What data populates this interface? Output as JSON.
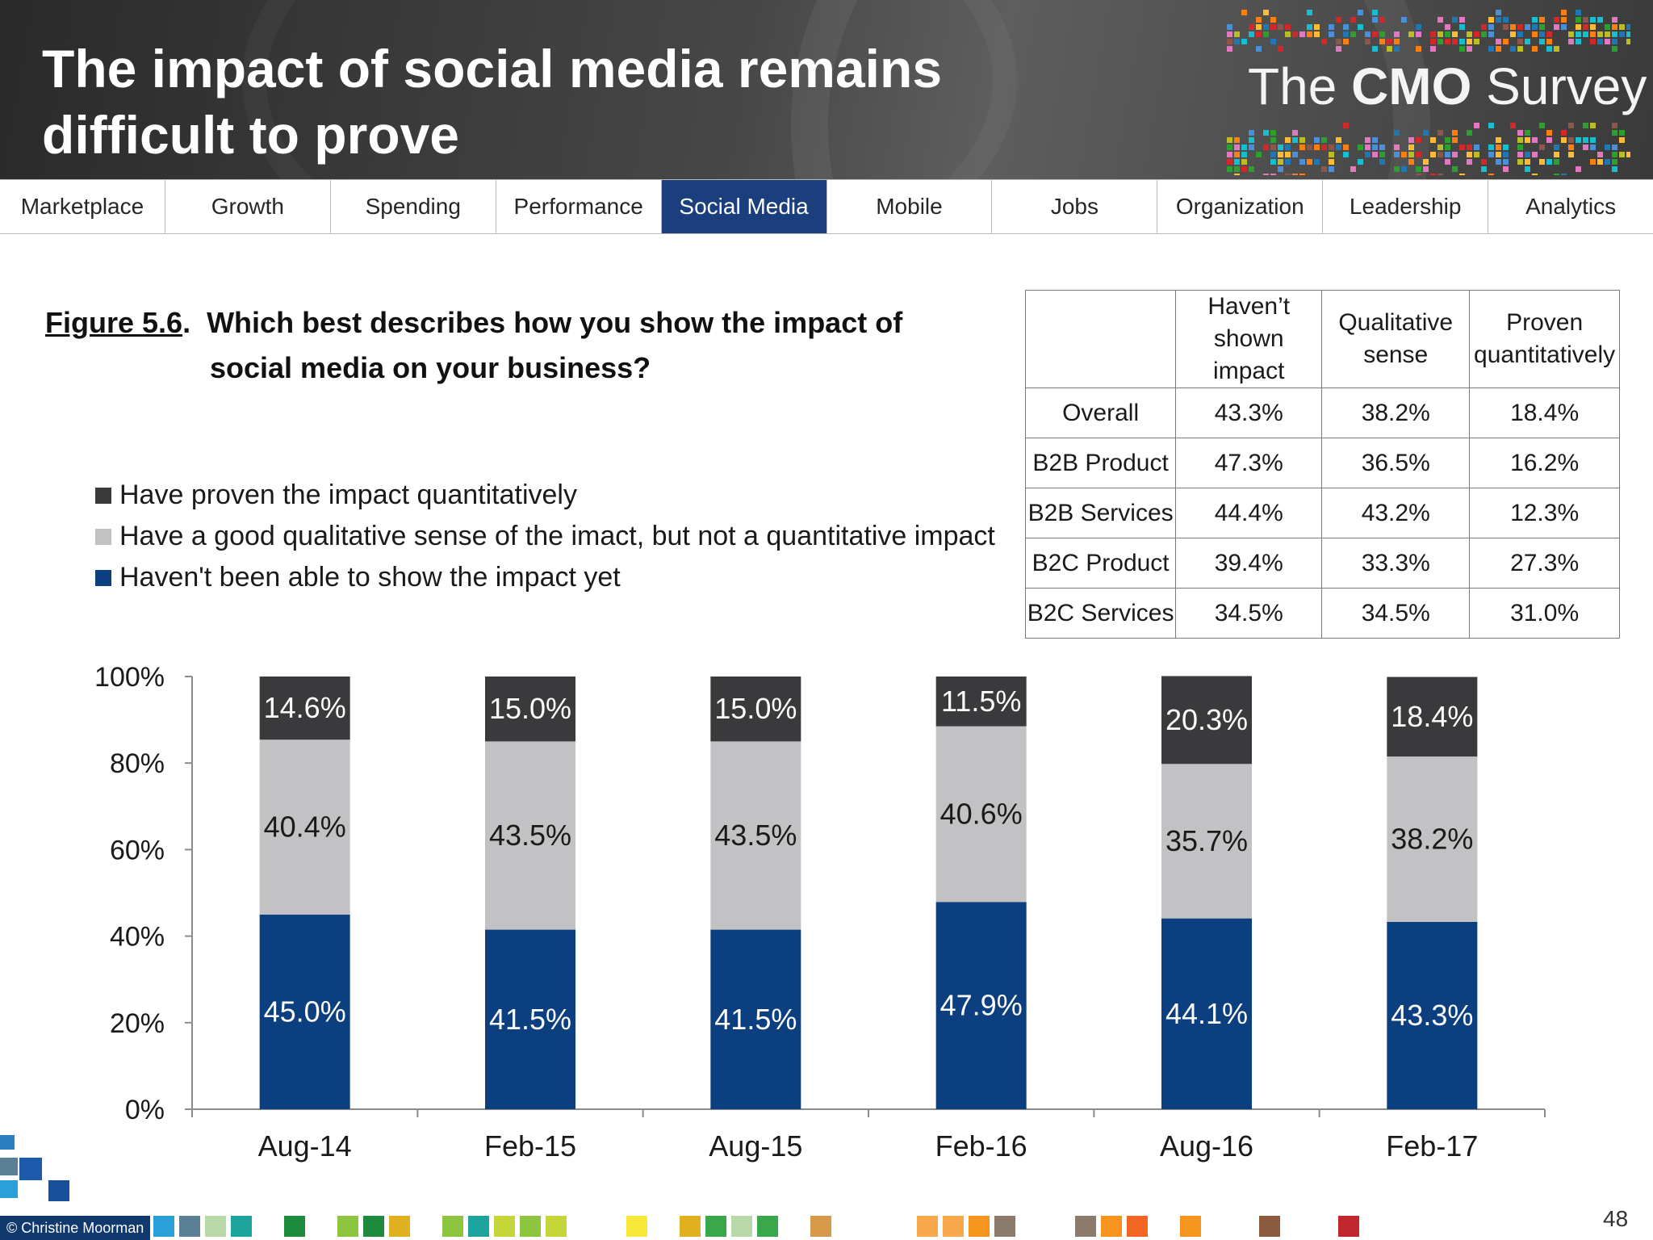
{
  "header": {
    "title": "The impact of social media remains difficult to prove",
    "logo_text": {
      "the": "The ",
      "cmo": "CMO",
      "survey": " Survey"
    }
  },
  "tabs": [
    {
      "label": "Marketplace",
      "active": false
    },
    {
      "label": "Growth",
      "active": false
    },
    {
      "label": "Spending",
      "active": false
    },
    {
      "label": "Performance",
      "active": false
    },
    {
      "label": "Social Media",
      "active": true
    },
    {
      "label": "Mobile",
      "active": false
    },
    {
      "label": "Jobs",
      "active": false
    },
    {
      "label": "Organization",
      "active": false
    },
    {
      "label": "Leadership",
      "active": false
    },
    {
      "label": "Analytics",
      "active": false
    }
  ],
  "figure": {
    "label": "Figure 5.6",
    "question_line1": "Which best describes how you show the impact of",
    "question_line2": "social media on your business?"
  },
  "legend": [
    {
      "label": "Have proven the impact quantitatively",
      "color": "#3a3a3c"
    },
    {
      "label": "Have a good qualitative sense of the imact, but not a quantitative impact",
      "color": "#c2c1c4"
    },
    {
      "label": "Haven't been able to show the impact yet",
      "color": "#0c3f7f"
    }
  ],
  "table": {
    "headers": [
      "",
      "Haven’t shown impact",
      "Qualitative sense",
      "Proven quantitatively"
    ],
    "rows": [
      [
        "Overall",
        "43.3%",
        "38.2%",
        "18.4%"
      ],
      [
        "B2B Product",
        "47.3%",
        "36.5%",
        "16.2%"
      ],
      [
        "B2B Services",
        "44.4%",
        "43.2%",
        "12.3%"
      ],
      [
        "B2C Product",
        "39.4%",
        "33.3%",
        "27.3%"
      ],
      [
        "B2C Services",
        "34.5%",
        "34.5%",
        "31.0%"
      ]
    ]
  },
  "chart_data": {
    "type": "bar",
    "stacked": true,
    "categories": [
      "Aug-14",
      "Feb-15",
      "Aug-15",
      "Feb-16",
      "Aug-16",
      "Feb-17"
    ],
    "series": [
      {
        "name": "Haven't been able to show the impact yet",
        "values": [
          45.0,
          41.5,
          41.5,
          47.9,
          44.1,
          43.3
        ],
        "color": "#0c3f7f"
      },
      {
        "name": "Have a good qualitative sense of the imact, but not a quantitative impact",
        "values": [
          40.4,
          43.5,
          43.5,
          40.6,
          35.7,
          38.2
        ],
        "color": "#c2c1c4"
      },
      {
        "name": "Have proven the impact quantitatively",
        "values": [
          14.6,
          15.0,
          15.0,
          11.5,
          20.3,
          18.4
        ],
        "color": "#3a3a3c"
      }
    ],
    "yticks": [
      "0%",
      "20%",
      "40%",
      "60%",
      "80%",
      "100%"
    ],
    "ylim": [
      0,
      100
    ],
    "grid": false,
    "legend_position": "top-left"
  },
  "footer": {
    "credit": "© Christine Moorman",
    "page_number": "48"
  }
}
